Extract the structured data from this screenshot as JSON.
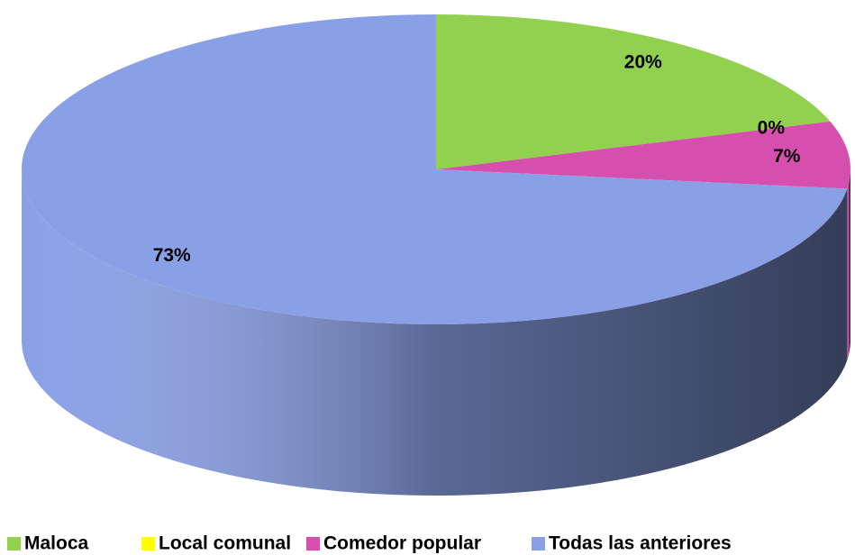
{
  "chart_data": {
    "type": "pie",
    "categories": [
      "Maloca",
      "Local comunal",
      "Comedor popular",
      "Todas las anteriores"
    ],
    "values": [
      20,
      0,
      7,
      73
    ],
    "value_labels": [
      "20%",
      "0%",
      "7%",
      "73%"
    ],
    "colors": [
      "#92d050",
      "#ffff00",
      "#d64fae",
      "#8aa0e6"
    ],
    "legend": "bottom"
  }
}
